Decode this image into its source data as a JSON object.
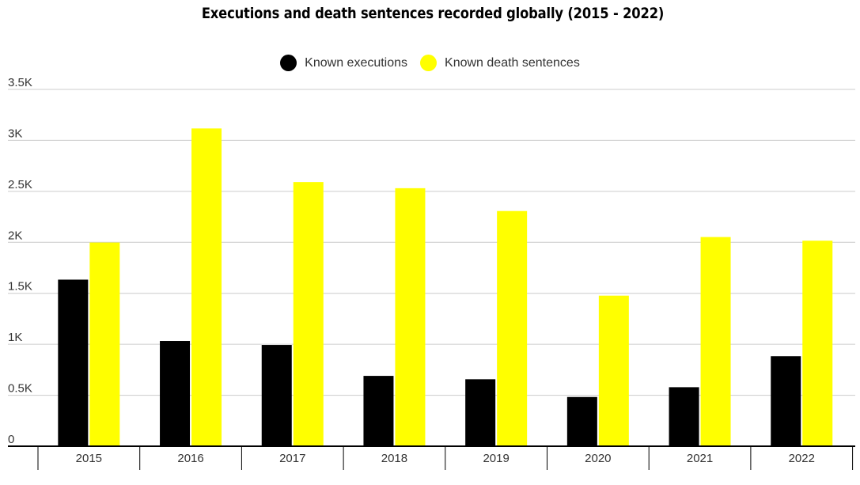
{
  "chart_data": {
    "type": "bar",
    "title": "Executions and death sentences recorded globally (2015 - 2022)",
    "categories": [
      "2015",
      "2016",
      "2017",
      "2018",
      "2019",
      "2020",
      "2021",
      "2022"
    ],
    "series": [
      {
        "name": "Known executions",
        "color": "#000000",
        "values": [
          1634,
          1032,
          993,
          690,
          657,
          483,
          579,
          883
        ]
      },
      {
        "name": "Known death sentences",
        "color": "#ffff00",
        "values": [
          1998,
          3117,
          2591,
          2531,
          2307,
          1477,
          2052,
          2016
        ]
      }
    ],
    "ylim": [
      0,
      3500
    ],
    "yticks": [
      {
        "value": 0,
        "label": "0"
      },
      {
        "value": 500,
        "label": "0.5K"
      },
      {
        "value": 1000,
        "label": "1K"
      },
      {
        "value": 1500,
        "label": "1.5K"
      },
      {
        "value": 2000,
        "label": "2K"
      },
      {
        "value": 2500,
        "label": "2.5K"
      },
      {
        "value": 3000,
        "label": "3K"
      },
      {
        "value": 3500,
        "label": "3.5K"
      }
    ],
    "grid": true,
    "legend_position": "top-center"
  }
}
